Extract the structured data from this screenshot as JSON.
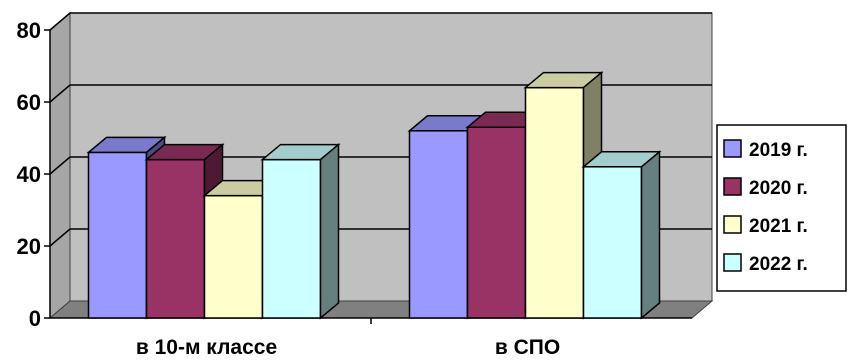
{
  "chart_data": {
    "type": "bar",
    "title": "",
    "xlabel": "",
    "ylabel": "",
    "categories": [
      "в 10-м классе",
      "в СПО"
    ],
    "series": [
      {
        "name": "2019 г.",
        "values": [
          46,
          52
        ],
        "color": "#9999ff"
      },
      {
        "name": "2020 г.",
        "values": [
          44,
          53
        ],
        "color": "#993366"
      },
      {
        "name": "2021 г.",
        "values": [
          34,
          64
        ],
        "color": "#ffffcc"
      },
      {
        "name": "2022 г.",
        "values": [
          44,
          42
        ],
        "color": "#ccffff"
      }
    ],
    "ylim": [
      0,
      80
    ],
    "yticks": [
      "0",
      "20",
      "40",
      "60",
      "80"
    ],
    "grid": true,
    "three_d": true,
    "legend_position": "right",
    "wall_color": "#c0c0c0",
    "floor_color": "#808080"
  }
}
